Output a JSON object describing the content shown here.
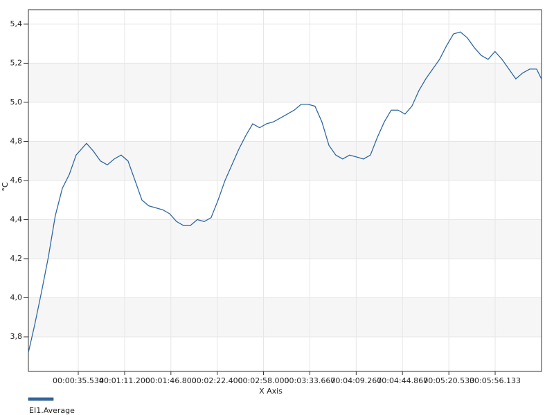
{
  "chart_data": {
    "type": "line",
    "x_label": "X Axis",
    "y_label": "°C",
    "xlim": [
      -2.8,
      391.8
    ],
    "ylim": [
      3.623,
      5.474
    ],
    "xticks": [
      {
        "value": 35.534,
        "label": "00:00:35.534"
      },
      {
        "value": 71.2,
        "label": "00:01:11.200"
      },
      {
        "value": 106.8,
        "label": "00:01:46.800"
      },
      {
        "value": 142.4,
        "label": "00:02:22.400"
      },
      {
        "value": 178.0,
        "label": "00:02:58.000"
      },
      {
        "value": 213.667,
        "label": "00:03:33.667"
      },
      {
        "value": 249.267,
        "label": "00:04:09.267"
      },
      {
        "value": 284.867,
        "label": "00:04:44.867"
      },
      {
        "value": 320.533,
        "label": "00:05:20.533"
      },
      {
        "value": 356.133,
        "label": "00:05:56.133"
      }
    ],
    "yticks": [
      {
        "value": 3.8,
        "label": "3,8"
      },
      {
        "value": 4.0,
        "label": "4,0"
      },
      {
        "value": 4.2,
        "label": "4,2"
      },
      {
        "value": 4.4,
        "label": "4,4"
      },
      {
        "value": 4.6,
        "label": "4,6"
      },
      {
        "value": 4.8,
        "label": "4,8"
      },
      {
        "value": 5.0,
        "label": "5,0"
      },
      {
        "value": 5.2,
        "label": "5,2"
      },
      {
        "value": 5.4,
        "label": "5,4"
      }
    ],
    "grid": true,
    "alternating_bands": true,
    "legend": "bottom-left",
    "x": [
      -2.8,
      2.0,
      7.3,
      12.6,
      17.9,
      23.3,
      28.6,
      33.9,
      39.2,
      41.9,
      47.2,
      52.6,
      57.9,
      63.2,
      68.5,
      73.8,
      79.2,
      84.5,
      89.8,
      95.2,
      100.5,
      105.8,
      111.1,
      116.4,
      121.8,
      127.1,
      132.4,
      137.7,
      143.1,
      148.4,
      153.7,
      159.0,
      164.4,
      169.7,
      175.0,
      180.3,
      185.7,
      191.0,
      196.3,
      201.6,
      207.0,
      212.3,
      217.6,
      222.9,
      228.3,
      233.6,
      238.9,
      244.2,
      249.6,
      254.9,
      260.2,
      265.5,
      270.9,
      276.2,
      281.5,
      286.8,
      292.1,
      297.5,
      302.8,
      308.1,
      313.4,
      318.8,
      324.1,
      329.4,
      334.7,
      340.1,
      345.4,
      350.7,
      356.0,
      361.4,
      366.7,
      372.0,
      377.3,
      382.7,
      388.0,
      391.7
    ],
    "series": [
      {
        "name": "EI1.Average",
        "color": "#2f67a3",
        "values": [
          3.72,
          3.86,
          4.03,
          4.21,
          4.42,
          4.56,
          4.63,
          4.73,
          4.77,
          4.79,
          4.75,
          4.7,
          4.68,
          4.71,
          4.73,
          4.7,
          4.6,
          4.5,
          4.47,
          4.46,
          4.45,
          4.43,
          4.39,
          4.37,
          4.37,
          4.4,
          4.39,
          4.41,
          4.5,
          4.6,
          4.68,
          4.76,
          4.83,
          4.89,
          4.87,
          4.89,
          4.9,
          4.92,
          4.94,
          4.96,
          4.99,
          4.99,
          4.98,
          4.9,
          4.78,
          4.73,
          4.71,
          4.73,
          4.72,
          4.71,
          4.73,
          4.82,
          4.9,
          4.96,
          4.96,
          4.94,
          4.98,
          5.06,
          5.12,
          5.17,
          5.22,
          5.29,
          5.35,
          5.36,
          5.33,
          5.28,
          5.24,
          5.22,
          5.26,
          5.22,
          5.17,
          5.12,
          5.15,
          5.17,
          5.17,
          5.12
        ]
      }
    ]
  }
}
